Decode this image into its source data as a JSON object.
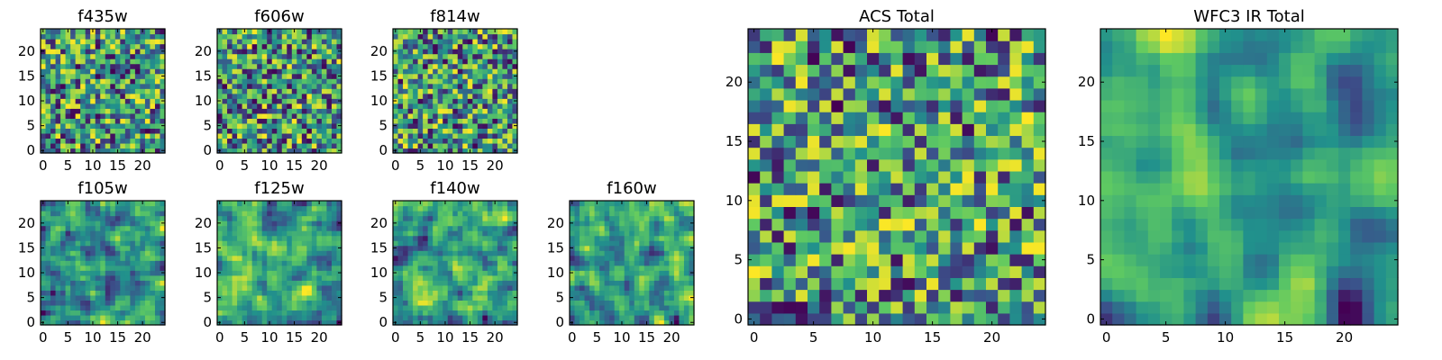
{
  "figure": {
    "colormap": "viridis",
    "colors": [
      "#440154",
      "#3b528b",
      "#21918c",
      "#5ec962",
      "#fde725"
    ]
  },
  "chart_data": [
    {
      "type": "heatmap",
      "title": "f435w",
      "grid": "25x25",
      "xlim": [
        0,
        24
      ],
      "ylim": [
        0,
        24
      ],
      "xticks": [
        "0",
        "5",
        "10",
        "15",
        "20"
      ],
      "yticks": [
        "0",
        "5",
        "10",
        "15",
        "20"
      ],
      "seed": 11,
      "smooth": 0,
      "bright": 0.55
    },
    {
      "type": "heatmap",
      "title": "f606w",
      "grid": "25x25",
      "xlim": [
        0,
        24
      ],
      "ylim": [
        0,
        24
      ],
      "xticks": [
        "0",
        "5",
        "10",
        "15",
        "20"
      ],
      "yticks": [
        "0",
        "5",
        "10",
        "15",
        "20"
      ],
      "seed": 23,
      "smooth": 0,
      "bright": 0.55
    },
    {
      "type": "heatmap",
      "title": "f814w",
      "grid": "25x25",
      "xlim": [
        0,
        24
      ],
      "ylim": [
        0,
        24
      ],
      "xticks": [
        "0",
        "5",
        "10",
        "15",
        "20"
      ],
      "yticks": [
        "0",
        "5",
        "10",
        "15",
        "20"
      ],
      "seed": 37,
      "smooth": 0,
      "bright": 0.58
    },
    {
      "type": "heatmap",
      "title": "f105w",
      "grid": "25x25",
      "xlim": [
        0,
        24
      ],
      "ylim": [
        0,
        24
      ],
      "xticks": [
        "0",
        "5",
        "10",
        "15",
        "20"
      ],
      "yticks": [
        "0",
        "5",
        "10",
        "15",
        "20"
      ],
      "seed": 41,
      "smooth": 1,
      "bright": 0.62
    },
    {
      "type": "heatmap",
      "title": "f125w",
      "grid": "25x25",
      "xlim": [
        0,
        24
      ],
      "ylim": [
        0,
        24
      ],
      "xticks": [
        "0",
        "5",
        "10",
        "15",
        "20"
      ],
      "yticks": [
        "0",
        "5",
        "10",
        "15",
        "20"
      ],
      "seed": 53,
      "smooth": 1,
      "bright": 0.62
    },
    {
      "type": "heatmap",
      "title": "f140w",
      "grid": "25x25",
      "xlim": [
        0,
        24
      ],
      "ylim": [
        0,
        24
      ],
      "xticks": [
        "0",
        "5",
        "10",
        "15",
        "20"
      ],
      "yticks": [
        "0",
        "5",
        "10",
        "15",
        "20"
      ],
      "seed": 67,
      "smooth": 1,
      "bright": 0.6
    },
    {
      "type": "heatmap",
      "title": "f160w",
      "grid": "25x25",
      "xlim": [
        0,
        24
      ],
      "ylim": [
        0,
        24
      ],
      "xticks": [
        "0",
        "5",
        "10",
        "15",
        "20"
      ],
      "yticks": [
        "0",
        "5",
        "10",
        "15",
        "20"
      ],
      "seed": 79,
      "smooth": 1,
      "bright": 0.55
    },
    {
      "type": "heatmap",
      "title": "ACS Total",
      "grid": "25x25",
      "xlim": [
        0,
        24
      ],
      "ylim": [
        0,
        24
      ],
      "xticks": [
        "0",
        "5",
        "10",
        "15",
        "20"
      ],
      "yticks": [
        "0",
        "5",
        "10",
        "15",
        "20"
      ],
      "seed": 97,
      "smooth": 0,
      "bright": 0.62
    },
    {
      "type": "heatmap",
      "title": "WFC3 IR Total",
      "grid": "25x25",
      "xlim": [
        0,
        24
      ],
      "ylim": [
        0,
        24
      ],
      "xticks": [
        "0",
        "5",
        "10",
        "15",
        "20"
      ],
      "yticks": [
        "0",
        "5",
        "10",
        "15",
        "20"
      ],
      "seed": 131,
      "smooth": 2,
      "bright": 0.62
    }
  ]
}
